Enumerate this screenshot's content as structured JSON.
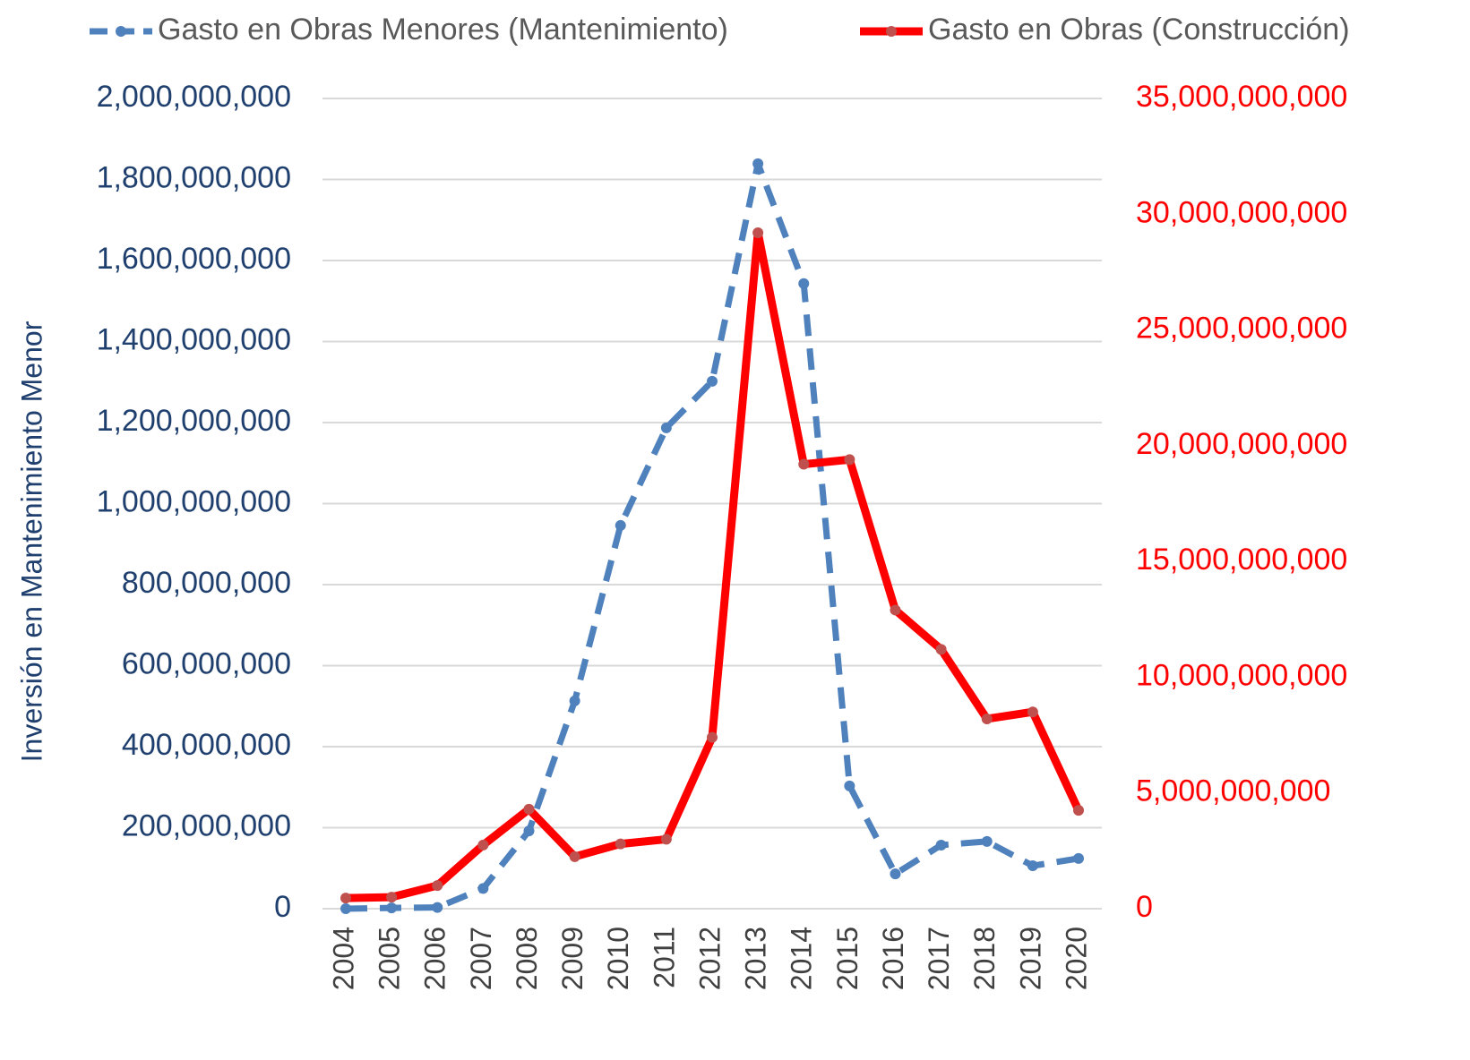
{
  "chart_data": {
    "type": "line",
    "categories": [
      "2004",
      "2005",
      "2006",
      "2007",
      "2008",
      "2009",
      "2010",
      "2011",
      "2012",
      "2013",
      "2014",
      "2015",
      "2016",
      "2017",
      "2018",
      "2019",
      "2020"
    ],
    "ylabel": "Inversión en Mantenimiento Menor",
    "ylim": [
      0,
      2000000000
    ],
    "yticks": [
      0,
      {
        "value": 200000000,
        "label": "200,000,000"
      },
      {
        "value": 400000000,
        "label": "400,000,000"
      },
      {
        "value": 600000000,
        "label": "600,000,000"
      },
      {
        "value": 800000000,
        "label": "800,000,000"
      },
      {
        "value": 1000000000,
        "label": "1,000,000,000"
      },
      {
        "value": 1200000000,
        "label": "1,200,000,000"
      },
      {
        "value": 1400000000,
        "label": "1,400,000,000"
      },
      {
        "value": 1600000000,
        "label": "1,600,000,000"
      },
      {
        "value": 1800000000,
        "label": "1,800,000,000"
      },
      {
        "value": 2000000000,
        "label": "2,000,000,000"
      }
    ],
    "y2lim": [
      0,
      35000000000
    ],
    "y2ticks": [
      0,
      {
        "value": 5000000000,
        "label": "5,000,000,000"
      },
      {
        "value": 10000000000,
        "label": "10,000,000,000"
      },
      {
        "value": 15000000000,
        "label": "15,000,000,000"
      },
      {
        "value": 20000000000,
        "label": "20,000,000,000"
      },
      {
        "value": 25000000000,
        "label": "25,000,000,000"
      },
      {
        "value": 30000000000,
        "label": "30,000,000,000"
      },
      {
        "value": 35000000000,
        "label": "35,000,000,000"
      }
    ],
    "grid": true,
    "legend": "top",
    "series": [
      {
        "name": "Gasto en Obras Menores (Mantenimiento)",
        "color": "#4f81bd",
        "dash": true,
        "values": [
          0,
          2000000,
          3000000,
          50000000,
          192000000,
          513000000,
          946000000,
          1187000000,
          1302000000,
          1839000000,
          1543000000,
          303000000,
          86000000,
          157000000,
          166000000,
          106000000,
          124000000
        ]
      },
      {
        "name": "Gasto en Obras (Construcción)",
        "color": "#ff0000",
        "marker_color": "#c0504d",
        "axis": "y2",
        "values": [
          460000000,
          500000000,
          1000000000,
          2750000000,
          4300000000,
          2250000000,
          2800000000,
          3000000000,
          7400000000,
          29200000000,
          19200000000,
          19400000000,
          12900000000,
          11200000000,
          8200000000,
          8500000000,
          4250000000
        ]
      }
    ]
  }
}
